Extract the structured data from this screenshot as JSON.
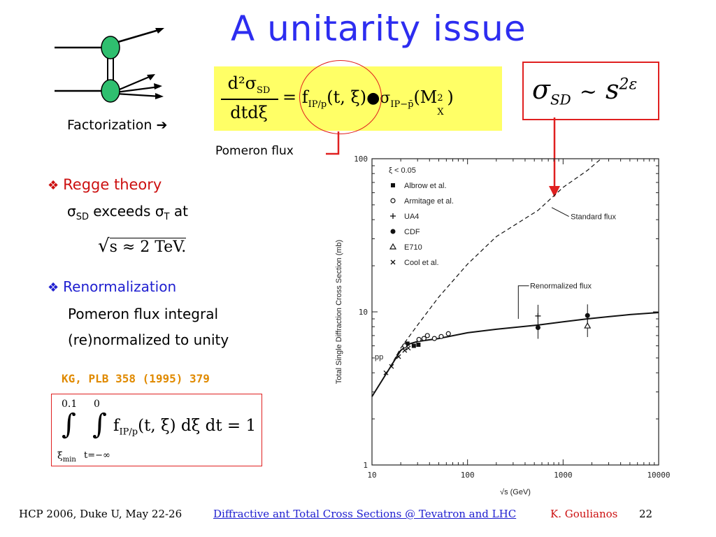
{
  "slide": {
    "title": "A unitarity issue",
    "factorization_label": "Factorization ➔",
    "pomeron_flux_label": "Pomeron flux",
    "formula": {
      "lhs_num": "d²σ",
      "lhs_num_sub": "SD",
      "lhs_den": "dtdξ",
      "f": "f",
      "f_sub": "IP/p",
      "f_args": "(t, ξ)",
      "sigma_sub": "IP−p̄",
      "mx": "(M",
      "mx_sup": "2",
      "mx_sub": "X",
      "mx_close": ")"
    },
    "sigma_sd_box": {
      "sigma": "σ",
      "sub": "SD",
      "tilde": "~",
      "s": "s",
      "exp": "2ε"
    },
    "regge": {
      "heading": "Regge theory",
      "line_pre": "σ",
      "line_sub1": "SD",
      "line_mid": " exceeds σ",
      "line_sub2": "T",
      "line_post": " at",
      "sqrt_expr": "s  ≈ 2 TeV."
    },
    "renormalization": {
      "heading": "Renormalization",
      "line1": "Pomeron flux integral",
      "line2": "(re)normalized to unity"
    },
    "reference": "KG, PLB 358 (1995) 379",
    "integral": {
      "upper1": "0.1",
      "upper2": "0",
      "lower1": "ξ",
      "lower1_sub": "min",
      "lower2": "t=−∞",
      "body_f": "f",
      "body_sub": "IP/p",
      "body_rest": "(t, ξ) dξ dt = 1"
    },
    "footer": {
      "conference": "HCP 2006, Duke U, May 22-26",
      "link": "Diffractive ant Total Cross Sections @ Tevatron and LHC",
      "author": "K. Goulianos",
      "page": "22"
    },
    "colors": {
      "title": "#2d2df0",
      "red": "#e02020",
      "yellow": "#ffff66",
      "orange": "#e08a00",
      "green": "#2fbf6f"
    }
  },
  "chart_data": {
    "type": "scatter",
    "title": "",
    "xlabel": "√s  (GeV)",
    "ylabel": "Total Single Diffraction Cross Section (mb)",
    "x_scale": "log",
    "y_scale": "log",
    "xlim": [
      10,
      10000
    ],
    "ylim": [
      1,
      100
    ],
    "x_ticks": [
      "10",
      "100",
      "1000",
      "10000"
    ],
    "y_ticks": [
      "100",
      "10",
      "1"
    ],
    "legend_header": "ξ  < 0.05",
    "legend": [
      "Albrow et al.",
      "Armitage et al.",
      "UA4",
      "CDF",
      "E710",
      "Cool et al."
    ],
    "legend_placement": "top-left",
    "pp_label": "pp",
    "curves": [
      {
        "name": "Standard flux",
        "style": "dashed",
        "points": [
          [
            10,
            2.8
          ],
          [
            15,
            4.2
          ],
          [
            20,
            5.8
          ],
          [
            30,
            8.2
          ],
          [
            50,
            12.5
          ],
          [
            100,
            20.5
          ],
          [
            200,
            31
          ],
          [
            546,
            46
          ],
          [
            1000,
            65
          ],
          [
            1800,
            84
          ],
          [
            2500,
            100
          ]
        ]
      },
      {
        "name": "Renormalized flux",
        "style": "solid",
        "points": [
          [
            10,
            2.8
          ],
          [
            15,
            4.2
          ],
          [
            20,
            5.6
          ],
          [
            25,
            6.2
          ],
          [
            30,
            6.4
          ],
          [
            50,
            6.7
          ],
          [
            100,
            7.3
          ],
          [
            200,
            7.7
          ],
          [
            546,
            8.2
          ],
          [
            1000,
            8.6
          ],
          [
            1800,
            9.0
          ],
          [
            3000,
            9.3
          ],
          [
            5000,
            9.6
          ],
          [
            10000,
            9.9
          ]
        ]
      }
    ],
    "series": [
      {
        "name": "Albrow et al.",
        "marker": "square",
        "points": [
          [
            23.5,
            6.2
          ],
          [
            27.4,
            6.0
          ],
          [
            30.6,
            6.1
          ]
        ]
      },
      {
        "name": "Armitage et al.",
        "marker": "open-circle",
        "points": [
          [
            22,
            6.0
          ],
          [
            31,
            6.6
          ],
          [
            35,
            6.7
          ],
          [
            38,
            7.0
          ],
          [
            45,
            6.7
          ],
          [
            53,
            6.9
          ],
          [
            63,
            7.2
          ]
        ]
      },
      {
        "name": "UA4",
        "marker": "plus",
        "points": [
          [
            546,
            9.4
          ]
        ]
      },
      {
        "name": "CDF",
        "marker": "filled-circle",
        "points": [
          [
            546,
            7.89
          ],
          [
            1800,
            9.46
          ]
        ]
      },
      {
        "name": "E710",
        "marker": "triangle",
        "points": [
          [
            1800,
            8.1
          ]
        ]
      },
      {
        "name": "Cool et al.",
        "marker": "cross",
        "points": [
          [
            14,
            4.0
          ],
          [
            16,
            4.4
          ],
          [
            19,
            5.1
          ],
          [
            22,
            5.6
          ],
          [
            24,
            5.8
          ]
        ]
      }
    ],
    "annotations": [
      "Standard flux",
      "Renormalized flux"
    ]
  }
}
